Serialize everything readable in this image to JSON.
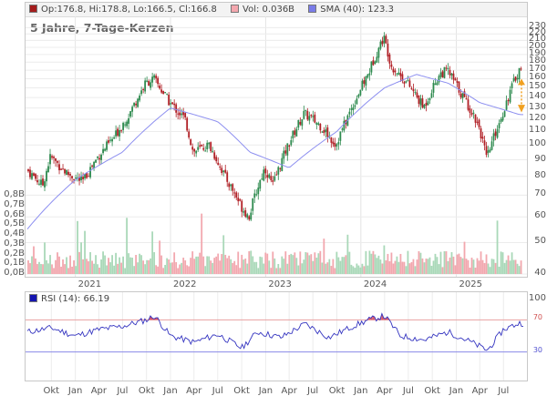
{
  "legend": {
    "ohlc_text": "Op:176.8, Hi:178.8, Lo:166.5, Cl:166.8",
    "vol_text": "Vol: 0.036B",
    "sma_text": "SMA (40): 123.3",
    "ohlc_color": "#a41c1c",
    "vol_color": "#f4a7ae",
    "sma_color": "#7a7ce8"
  },
  "chart_title": "5 Jahre, 7-Tage-Kerzen",
  "rsi_legend": {
    "text": "RSI (14): 66.19",
    "color": "#1515b0"
  },
  "colors": {
    "up": "#2d8a4e",
    "down": "#b01e24",
    "vol_up": "#a9d8b8",
    "vol_down": "#f2a7ae",
    "sma": "#8d8ff0",
    "rsi_line": "#3434c0",
    "rsi_fill": "#d8586a",
    "arrow": "#f0a020"
  },
  "chart_data": [
    {
      "type": "candlestick",
      "title": "5 Jahre, 7-Tage-Kerzen",
      "y_ticks": [
        "230",
        "220",
        "210",
        "200",
        "190",
        "180",
        "170",
        "160",
        "150",
        "140",
        "130",
        "120",
        "110",
        "100",
        "90",
        "80",
        "70",
        "60",
        "50",
        "40"
      ],
      "y_scale": "log",
      "ylim": [
        40,
        235
      ],
      "x_ticks": [
        "2021",
        "2022",
        "2023",
        "2024",
        "2025"
      ],
      "price_anchor_points": [
        {
          "date": "2020-07",
          "close": 84
        },
        {
          "date": "2020-09",
          "close": 75
        },
        {
          "date": "2020-10",
          "close": 92
        },
        {
          "date": "2020-12",
          "close": 82
        },
        {
          "date": "2021-02",
          "close": 77
        },
        {
          "date": "2021-04",
          "close": 92
        },
        {
          "date": "2021-06",
          "close": 105
        },
        {
          "date": "2021-08",
          "close": 125
        },
        {
          "date": "2021-10",
          "close": 155
        },
        {
          "date": "2021-11",
          "close": 160
        },
        {
          "date": "2022-01",
          "close": 135
        },
        {
          "date": "2022-03",
          "close": 120
        },
        {
          "date": "2022-04",
          "close": 95
        },
        {
          "date": "2022-06",
          "close": 100
        },
        {
          "date": "2022-08",
          "close": 80
        },
        {
          "date": "2022-10",
          "close": 65
        },
        {
          "date": "2022-11",
          "close": 60
        },
        {
          "date": "2023-01",
          "close": 85
        },
        {
          "date": "2023-02",
          "close": 75
        },
        {
          "date": "2023-04",
          "close": 100
        },
        {
          "date": "2023-06",
          "close": 125
        },
        {
          "date": "2023-08",
          "close": 115
        },
        {
          "date": "2023-10",
          "close": 100
        },
        {
          "date": "2023-12",
          "close": 130
        },
        {
          "date": "2024-02",
          "close": 165
        },
        {
          "date": "2024-04",
          "close": 215
        },
        {
          "date": "2024-05",
          "close": 175
        },
        {
          "date": "2024-07",
          "close": 155
        },
        {
          "date": "2024-09",
          "close": 130
        },
        {
          "date": "2024-11",
          "close": 165
        },
        {
          "date": "2024-12",
          "close": 170
        },
        {
          "date": "2025-02",
          "close": 140
        },
        {
          "date": "2025-04",
          "close": 115
        },
        {
          "date": "2025-05",
          "close": 90
        },
        {
          "date": "2025-07",
          "close": 125
        },
        {
          "date": "2025-09",
          "close": 170
        }
      ],
      "sma": {
        "name": "SMA (40)",
        "last_value": 123.3,
        "points": [
          {
            "date": "2020-07",
            "value": 55
          },
          {
            "date": "2021-01",
            "value": 78
          },
          {
            "date": "2021-07",
            "value": 95
          },
          {
            "date": "2022-01",
            "value": 130
          },
          {
            "date": "2022-07",
            "value": 118
          },
          {
            "date": "2022-11",
            "value": 95
          },
          {
            "date": "2023-04",
            "value": 85
          },
          {
            "date": "2023-10",
            "value": 110
          },
          {
            "date": "2024-04",
            "value": 150
          },
          {
            "date": "2024-08",
            "value": 165
          },
          {
            "date": "2024-12",
            "value": 155
          },
          {
            "date": "2025-04",
            "value": 135
          },
          {
            "date": "2025-09",
            "value": 124
          }
        ]
      },
      "volume": {
        "ticks": [
          "0,8B",
          "0,7B",
          "0,6B",
          "0,5B",
          "0,4B",
          "0,3B",
          "0,2B",
          "0,1B",
          "0,0B"
        ],
        "last_value_b": 0.036,
        "max_b": 0.8
      }
    },
    {
      "type": "line",
      "name": "RSI (14)",
      "last_value": 66.19,
      "y_ticks": [
        "100",
        "70",
        "30"
      ],
      "ylim": [
        0,
        100
      ],
      "thresholds": [
        70,
        30
      ],
      "x_ticks": [
        "Okt",
        "Jan",
        "Apr",
        "Jul",
        "Okt",
        "Jan",
        "Apr",
        "Jul",
        "Okt",
        "Jan",
        "Apr",
        "Jul",
        "Okt",
        "Jan",
        "Apr",
        "Jul",
        "Okt",
        "Jan",
        "Apr",
        "Jul"
      ],
      "points": [
        {
          "date": "2020-07",
          "value": 55
        },
        {
          "date": "2020-10",
          "value": 60
        },
        {
          "date": "2021-01",
          "value": 50
        },
        {
          "date": "2021-04",
          "value": 58
        },
        {
          "date": "2021-07",
          "value": 62
        },
        {
          "date": "2021-10",
          "value": 70
        },
        {
          "date": "2021-11",
          "value": 75
        },
        {
          "date": "2022-01",
          "value": 50
        },
        {
          "date": "2022-04",
          "value": 42
        },
        {
          "date": "2022-07",
          "value": 52
        },
        {
          "date": "2022-10",
          "value": 35
        },
        {
          "date": "2022-12",
          "value": 55
        },
        {
          "date": "2023-03",
          "value": 48
        },
        {
          "date": "2023-06",
          "value": 65
        },
        {
          "date": "2023-09",
          "value": 48
        },
        {
          "date": "2023-12",
          "value": 62
        },
        {
          "date": "2024-02",
          "value": 70
        },
        {
          "date": "2024-04",
          "value": 75
        },
        {
          "date": "2024-06",
          "value": 50
        },
        {
          "date": "2024-09",
          "value": 45
        },
        {
          "date": "2024-12",
          "value": 55
        },
        {
          "date": "2025-03",
          "value": 42
        },
        {
          "date": "2025-05",
          "value": 32
        },
        {
          "date": "2025-07",
          "value": 58
        },
        {
          "date": "2025-09",
          "value": 66
        }
      ]
    }
  ]
}
